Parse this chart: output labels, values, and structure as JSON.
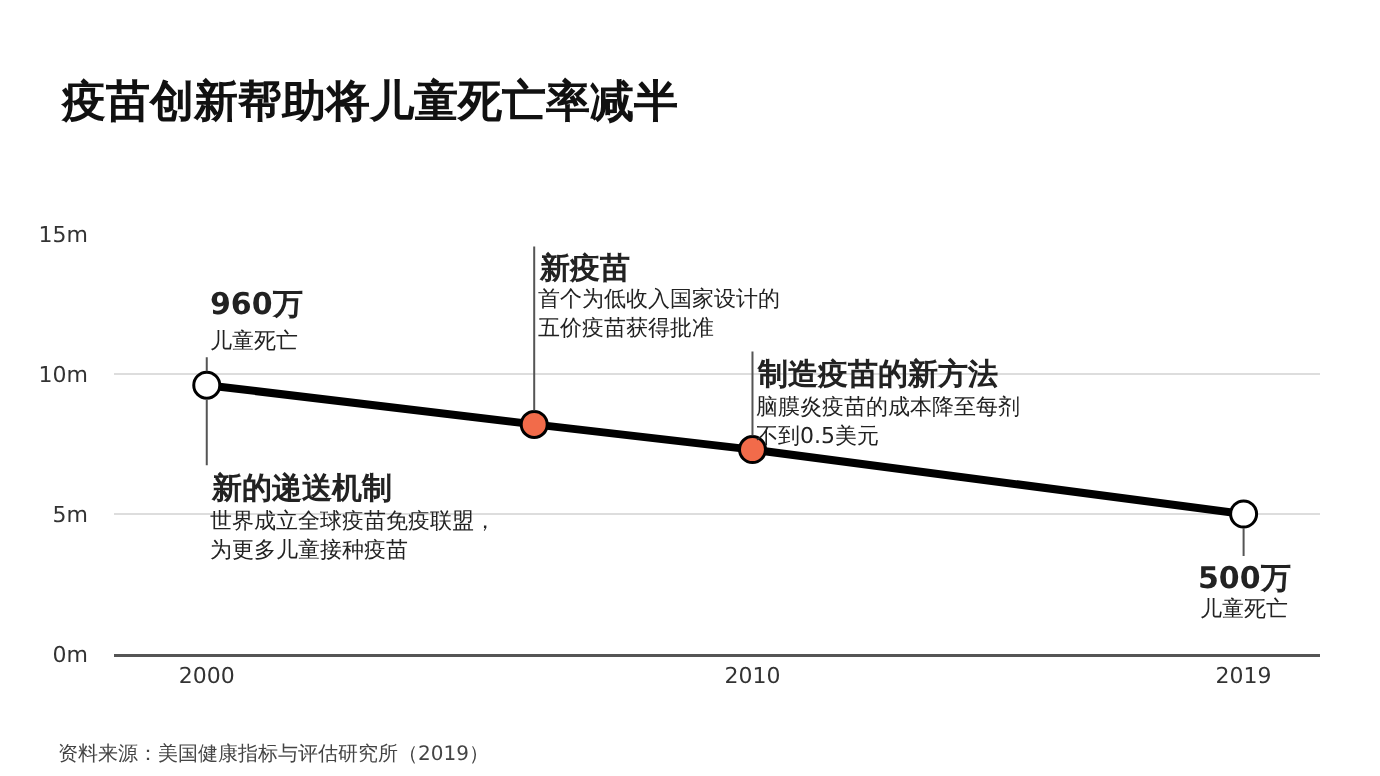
{
  "chart_data": {
    "type": "line",
    "title": "疫苗创新帮助将儿童死亡率减半",
    "x": [
      2000,
      2006,
      2010,
      2019
    ],
    "series": [
      {
        "color": "#000000",
        "colors": [
          "#ffffff",
          "#f26b4a",
          "#f26b4a",
          "#ffffff"
        ],
        "values": [
          9.6,
          8.2,
          7.3,
          5.0
        ]
      }
    ],
    "xlim": [
      1998.3,
      2020.4
    ],
    "xticks": [
      2000,
      2010,
      2019
    ],
    "ylim": [
      0,
      15
    ],
    "yticks": [
      {
        "value": 0,
        "label": "0m"
      },
      {
        "value": 5,
        "label": "5m"
      },
      {
        "value": 10,
        "label": "10m"
      },
      {
        "value": 15,
        "label": "15m"
      }
    ],
    "grid": "y",
    "marker": "circle",
    "line_style": "solid",
    "annotations": [
      {
        "text": "960万",
        "x": 2000,
        "y": 9.6
      },
      {
        "text": "儿童死亡",
        "x": 2000,
        "y": 9.6
      },
      {
        "text": "新的递送机制",
        "x": 2000,
        "y": 9.6
      },
      "世界成立全球疫苗免疫联盟，为更多儿童接种疫苗",
      {
        "text": "新疫苗",
        "x": 2006,
        "y": 8.2
      },
      "首个为低收入国家设计的五价疫苗获得批准",
      {
        "text": "制造疫苗的新方法",
        "x": 2010,
        "y": 7.3
      },
      {
        "text": "脑膜炎疫苗的成本降至每剂不到0.5美元",
        "x": 2010,
        "y": 7.3
      },
      {
        "text": "500万",
        "x": 2019,
        "y": 5.0
      },
      "儿童死亡",
      "资料来源：美国健康指标与评估研究所（2019）"
    ]
  }
}
